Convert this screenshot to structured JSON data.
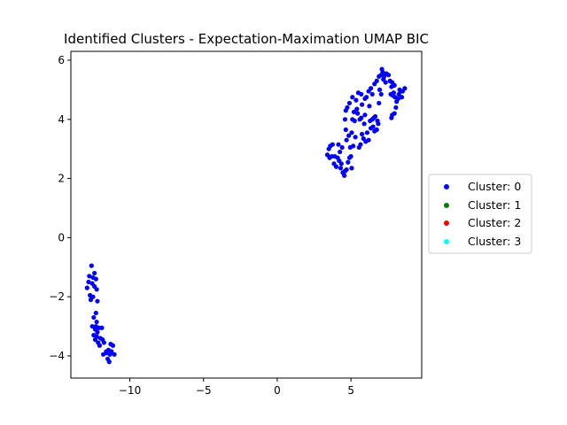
{
  "chart_data": {
    "type": "scatter",
    "title": "Identified Clusters - Expectation-Maximation UMAP BIC",
    "xlabel": "",
    "ylabel": "",
    "xlim": [
      -14.0,
      9.8
    ],
    "ylim": [
      -4.75,
      6.3
    ],
    "xticks": [
      -10,
      -5,
      0,
      5
    ],
    "yticks": [
      -4,
      -2,
      0,
      2,
      4,
      6
    ],
    "xtick_labels": [
      "−10",
      "−5",
      "0",
      "5"
    ],
    "ytick_labels": [
      "−4",
      "−2",
      "0",
      "2",
      "4",
      "6"
    ],
    "grid": false,
    "legend_position": "center-right-outside",
    "series": [
      {
        "name": "Cluster: 0",
        "color": "#0000ff",
        "points": [
          [
            -12.6,
            -0.95
          ],
          [
            -12.4,
            -1.2
          ],
          [
            -12.75,
            -1.3
          ],
          [
            -12.5,
            -1.35
          ],
          [
            -12.3,
            -1.4
          ],
          [
            -12.8,
            -1.5
          ],
          [
            -12.55,
            -1.55
          ],
          [
            -12.9,
            -1.7
          ],
          [
            -12.4,
            -1.65
          ],
          [
            -12.25,
            -1.75
          ],
          [
            -12.7,
            -1.95
          ],
          [
            -12.5,
            -2.0
          ],
          [
            -12.65,
            -2.1
          ],
          [
            -12.2,
            -2.15
          ],
          [
            -12.3,
            -2.55
          ],
          [
            -12.45,
            -2.7
          ],
          [
            -12.25,
            -2.85
          ],
          [
            -12.55,
            -3.0
          ],
          [
            -12.35,
            -3.1
          ],
          [
            -12.1,
            -3.05
          ],
          [
            -11.9,
            -3.05
          ],
          [
            -12.2,
            -3.2
          ],
          [
            -12.45,
            -3.3
          ],
          [
            -12.25,
            -3.35
          ],
          [
            -12.0,
            -3.4
          ],
          [
            -11.85,
            -3.45
          ],
          [
            -12.35,
            -3.45
          ],
          [
            -12.15,
            -3.55
          ],
          [
            -11.75,
            -3.55
          ],
          [
            -12.05,
            -3.65
          ],
          [
            -11.3,
            -3.6
          ],
          [
            -11.15,
            -3.65
          ],
          [
            -11.45,
            -3.8
          ],
          [
            -11.6,
            -3.85
          ],
          [
            -11.25,
            -3.85
          ],
          [
            -11.8,
            -3.95
          ],
          [
            -11.35,
            -3.95
          ],
          [
            -11.05,
            -3.95
          ],
          [
            -11.5,
            -4.1
          ],
          [
            -11.4,
            -4.2
          ],
          [
            -11.6,
            -3.9
          ],
          [
            -12.3,
            -3.0
          ],
          [
            3.4,
            2.8
          ],
          [
            3.55,
            2.7
          ],
          [
            3.7,
            2.75
          ],
          [
            3.5,
            3.0
          ],
          [
            3.6,
            3.1
          ],
          [
            3.75,
            3.15
          ],
          [
            3.85,
            2.5
          ],
          [
            4.0,
            2.4
          ],
          [
            4.1,
            2.7
          ],
          [
            4.2,
            2.6
          ],
          [
            4.3,
            2.35
          ],
          [
            4.35,
            2.5
          ],
          [
            4.45,
            2.2
          ],
          [
            4.55,
            2.1
          ],
          [
            4.6,
            2.25
          ],
          [
            4.7,
            2.3
          ],
          [
            4.8,
            2.55
          ],
          [
            4.25,
            2.9
          ],
          [
            4.4,
            3.05
          ],
          [
            4.15,
            3.15
          ],
          [
            4.9,
            2.7
          ],
          [
            5.0,
            2.75
          ],
          [
            5.05,
            2.35
          ],
          [
            4.7,
            3.3
          ],
          [
            4.65,
            3.65
          ],
          [
            4.85,
            3.45
          ],
          [
            5.05,
            3.55
          ],
          [
            4.95,
            3.05
          ],
          [
            5.15,
            3.1
          ],
          [
            5.3,
            3.4
          ],
          [
            5.55,
            3.05
          ],
          [
            5.65,
            3.15
          ],
          [
            5.75,
            3.5
          ],
          [
            5.85,
            3.35
          ],
          [
            6.0,
            3.25
          ],
          [
            6.1,
            3.55
          ],
          [
            6.2,
            3.3
          ],
          [
            6.35,
            3.7
          ],
          [
            6.5,
            3.75
          ],
          [
            6.6,
            3.6
          ],
          [
            6.75,
            3.65
          ],
          [
            6.85,
            3.85
          ],
          [
            6.3,
            3.95
          ],
          [
            6.55,
            4.05
          ],
          [
            6.45,
            4.0
          ],
          [
            6.65,
            4.1
          ],
          [
            6.8,
            3.95
          ],
          [
            5.1,
            4.0
          ],
          [
            5.25,
            3.95
          ],
          [
            5.45,
            4.2
          ],
          [
            5.6,
            4.0
          ],
          [
            5.7,
            4.05
          ],
          [
            5.9,
            3.85
          ],
          [
            5.95,
            4.15
          ],
          [
            4.6,
            4.0
          ],
          [
            4.65,
            4.3
          ],
          [
            4.75,
            4.4
          ],
          [
            4.9,
            4.55
          ],
          [
            5.1,
            4.75
          ],
          [
            5.35,
            4.65
          ],
          [
            5.5,
            4.9
          ],
          [
            5.7,
            4.85
          ],
          [
            5.75,
            4.5
          ],
          [
            5.95,
            4.7
          ],
          [
            6.05,
            4.75
          ],
          [
            6.2,
            4.95
          ],
          [
            6.35,
            5.05
          ],
          [
            6.45,
            4.85
          ],
          [
            6.6,
            5.2
          ],
          [
            6.75,
            5.3
          ],
          [
            6.9,
            5.45
          ],
          [
            7.05,
            5.5
          ],
          [
            7.15,
            5.6
          ],
          [
            7.25,
            5.45
          ],
          [
            7.1,
            5.7
          ],
          [
            7.4,
            5.55
          ],
          [
            7.55,
            5.5
          ],
          [
            7.65,
            5.3
          ],
          [
            7.8,
            5.25
          ],
          [
            7.95,
            5.15
          ],
          [
            7.75,
            5.1
          ],
          [
            7.35,
            5.25
          ],
          [
            7.2,
            5.35
          ],
          [
            7.7,
            4.85
          ],
          [
            7.85,
            4.8
          ],
          [
            7.9,
            4.9
          ],
          [
            8.0,
            4.75
          ],
          [
            8.25,
            4.85
          ],
          [
            8.3,
            5.0
          ],
          [
            8.4,
            4.95
          ],
          [
            8.5,
            4.95
          ],
          [
            8.65,
            5.05
          ],
          [
            8.2,
            4.7
          ],
          [
            8.05,
            4.4
          ],
          [
            8.1,
            4.6
          ],
          [
            8.45,
            4.75
          ],
          [
            7.8,
            4.15
          ],
          [
            7.75,
            4.05
          ],
          [
            7.95,
            4.2
          ],
          [
            6.9,
            4.55
          ],
          [
            7.05,
            4.85
          ],
          [
            6.95,
            5.0
          ],
          [
            6.25,
            4.45
          ],
          [
            5.2,
            4.25
          ],
          [
            5.4,
            4.35
          ],
          [
            3.9,
            2.75
          ]
        ]
      },
      {
        "name": "Cluster: 1",
        "color": "#008000",
        "points": []
      },
      {
        "name": "Cluster: 2",
        "color": "#ff0000",
        "points": []
      },
      {
        "name": "Cluster: 3",
        "color": "#00ffff",
        "points": []
      }
    ]
  }
}
